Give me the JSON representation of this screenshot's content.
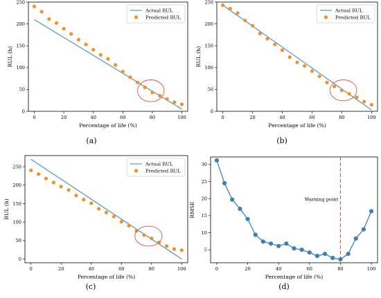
{
  "chart_data": [
    {
      "type": "scatter",
      "panel_label": "(a)",
      "xlabel": "Percentage of life (%)",
      "ylabel": "RUL (h)",
      "xlim": [
        -4,
        104
      ],
      "ylim": [
        0,
        250
      ],
      "xticks": [
        0,
        20,
        40,
        60,
        80,
        100
      ],
      "yticks": [
        0,
        50,
        100,
        150,
        200,
        250
      ],
      "legend": "top-right",
      "series": [
        {
          "name": "Actual RUL",
          "kind": "line",
          "color": "#5b9bc7",
          "x": [
            0,
            100
          ],
          "y": [
            210,
            5
          ]
        },
        {
          "name": "Predicted RUL",
          "kind": "scatter",
          "color": "#f0922b",
          "x": [
            0,
            5,
            10,
            15,
            20,
            25,
            30,
            35,
            40,
            45,
            50,
            55,
            60,
            65,
            70,
            75,
            80,
            85,
            90,
            95,
            100
          ],
          "y": [
            240,
            228,
            211,
            202,
            189,
            177,
            164,
            153,
            141,
            129,
            120,
            106,
            91,
            78,
            66,
            55,
            43,
            36,
            28,
            21,
            16
          ]
        }
      ],
      "annotation": {
        "shape": "ellipse",
        "cx": 79,
        "cy": 47,
        "rx": 9,
        "ry": 25,
        "color": "#d9534f"
      }
    },
    {
      "type": "scatter",
      "panel_label": "(b)",
      "xlabel": "Percentage of life (%)",
      "ylabel": "RUL (h)",
      "xlim": [
        -4,
        104
      ],
      "ylim": [
        0,
        250
      ],
      "xticks": [
        0,
        20,
        40,
        60,
        80,
        100
      ],
      "yticks": [
        0,
        50,
        100,
        150,
        200,
        250
      ],
      "legend": "top-right",
      "series": [
        {
          "name": "Actual RUL",
          "kind": "line",
          "color": "#5b9bc7",
          "x": [
            0,
            100
          ],
          "y": [
            243,
            3
          ]
        },
        {
          "name": "Predicted RUL",
          "kind": "scatter",
          "color": "#f0922b",
          "x": [
            0,
            5,
            10,
            15,
            20,
            25,
            30,
            35,
            40,
            45,
            50,
            55,
            60,
            65,
            70,
            75,
            80,
            85,
            90,
            95,
            100
          ],
          "y": [
            243,
            235,
            225,
            208,
            196,
            178,
            166,
            153,
            140,
            124,
            112,
            104,
            92,
            80,
            66,
            57,
            48,
            40,
            32,
            22,
            15
          ]
        }
      ],
      "annotation": {
        "shape": "ellipse",
        "cx": 81,
        "cy": 48,
        "rx": 9,
        "ry": 24,
        "color": "#d9534f"
      }
    },
    {
      "type": "scatter",
      "panel_label": "(c)",
      "xlabel": "Percentage of life (%)",
      "ylabel": "RUL (h)",
      "xlim": [
        -4,
        104
      ],
      "ylim": [
        -10,
        280
      ],
      "xticks": [
        0,
        20,
        40,
        60,
        80,
        100
      ],
      "yticks": [
        0,
        50,
        100,
        150,
        200,
        250
      ],
      "legend": "top-right",
      "series": [
        {
          "name": "Actual RUL",
          "kind": "line",
          "color": "#5b9bc7",
          "x": [
            0,
            100
          ],
          "y": [
            270,
            0
          ]
        },
        {
          "name": "Predicted RUL",
          "kind": "scatter",
          "color": "#f0922b",
          "x": [
            0,
            5,
            10,
            15,
            20,
            25,
            30,
            35,
            40,
            45,
            50,
            55,
            60,
            65,
            70,
            75,
            80,
            85,
            90,
            95,
            100
          ],
          "y": [
            240,
            230,
            218,
            207,
            196,
            187,
            172,
            161,
            151,
            136,
            126,
            115,
            101,
            90,
            76,
            65,
            56,
            45,
            35,
            27,
            24
          ]
        }
      ],
      "annotation": {
        "shape": "ellipse",
        "cx": 78,
        "cy": 62,
        "rx": 9,
        "ry": 27,
        "color": "#d9534f"
      }
    },
    {
      "type": "line",
      "panel_label": "(d)",
      "xlabel": "Percentage of life (%)",
      "ylabel": "RMSE",
      "xlim": [
        -4,
        104
      ],
      "ylim": [
        1.2,
        32.2
      ],
      "xticks": [
        0,
        20,
        40,
        60,
        80,
        100
      ],
      "yticks": [
        5,
        10,
        15,
        20,
        25,
        30
      ],
      "series": [
        {
          "kind": "line-markers",
          "color": "#3f7fb5",
          "x": [
            0,
            5,
            10,
            15,
            20,
            25,
            30,
            35,
            40,
            45,
            50,
            55,
            60,
            65,
            70,
            75,
            80,
            85,
            90,
            95,
            100
          ],
          "y": [
            31.2,
            24.5,
            19.7,
            17.0,
            14.0,
            9.4,
            7.4,
            6.8,
            6.1,
            6.8,
            5.4,
            5.0,
            4.2,
            3.2,
            3.8,
            2.6,
            2.2,
            3.8,
            8.3,
            11.0,
            16.3
          ]
        }
      ],
      "warning_line": {
        "x": 80,
        "color": "#d9534f",
        "label": "Warning point"
      }
    }
  ]
}
